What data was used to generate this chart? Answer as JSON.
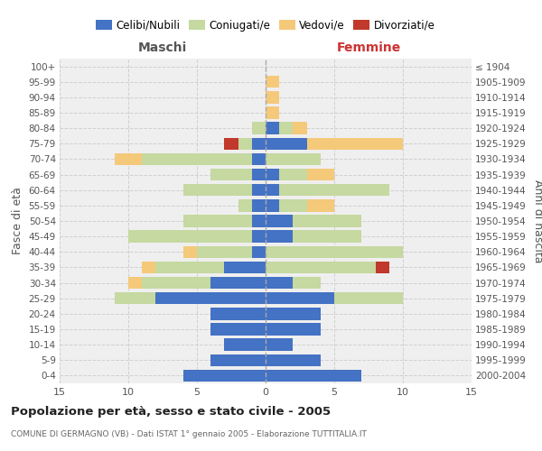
{
  "age_groups": [
    "0-4",
    "5-9",
    "10-14",
    "15-19",
    "20-24",
    "25-29",
    "30-34",
    "35-39",
    "40-44",
    "45-49",
    "50-54",
    "55-59",
    "60-64",
    "65-69",
    "70-74",
    "75-79",
    "80-84",
    "85-89",
    "90-94",
    "95-99",
    "100+"
  ],
  "birth_years": [
    "2000-2004",
    "1995-1999",
    "1990-1994",
    "1985-1989",
    "1980-1984",
    "1975-1979",
    "1970-1974",
    "1965-1969",
    "1960-1964",
    "1955-1959",
    "1950-1954",
    "1945-1949",
    "1940-1944",
    "1935-1939",
    "1930-1934",
    "1925-1929",
    "1920-1924",
    "1915-1919",
    "1910-1914",
    "1905-1909",
    "≤ 1904"
  ],
  "male_celibi": [
    6,
    4,
    3,
    4,
    4,
    8,
    4,
    3,
    1,
    1,
    1,
    1,
    1,
    1,
    1,
    1,
    0,
    0,
    0,
    0,
    0
  ],
  "male_coniugati": [
    0,
    0,
    0,
    0,
    0,
    3,
    5,
    5,
    4,
    9,
    5,
    1,
    5,
    3,
    8,
    1,
    1,
    0,
    0,
    0,
    0
  ],
  "male_vedovi": [
    0,
    0,
    0,
    0,
    0,
    0,
    1,
    1,
    1,
    0,
    0,
    0,
    0,
    0,
    2,
    0,
    0,
    0,
    0,
    0,
    0
  ],
  "male_divorziati": [
    0,
    0,
    0,
    0,
    0,
    0,
    0,
    0,
    0,
    0,
    0,
    0,
    0,
    0,
    0,
    1,
    0,
    0,
    0,
    0,
    0
  ],
  "female_celibi": [
    7,
    4,
    2,
    4,
    4,
    5,
    2,
    0,
    0,
    2,
    2,
    1,
    1,
    1,
    0,
    3,
    1,
    0,
    0,
    0,
    0
  ],
  "female_coniugati": [
    0,
    0,
    0,
    0,
    0,
    5,
    2,
    8,
    10,
    5,
    5,
    2,
    8,
    2,
    4,
    0,
    1,
    0,
    0,
    0,
    0
  ],
  "female_vedovi": [
    0,
    0,
    0,
    0,
    0,
    0,
    0,
    0,
    0,
    0,
    0,
    2,
    0,
    2,
    0,
    7,
    1,
    1,
    1,
    1,
    0
  ],
  "female_divorziati": [
    0,
    0,
    0,
    0,
    0,
    0,
    0,
    1,
    0,
    0,
    0,
    0,
    0,
    0,
    0,
    0,
    0,
    0,
    0,
    0,
    0
  ],
  "color_celibi": "#4472C4",
  "color_coniugati": "#C5D9A0",
  "color_vedovi": "#F5C97A",
  "color_divorziati": "#C0392B",
  "xlim": 15,
  "title": "Popolazione per età, sesso e stato civile - 2005",
  "subtitle": "COMUNE DI GERMAGNO (VB) - Dati ISTAT 1° gennaio 2005 - Elaborazione TUTTITALIA.IT",
  "ylabel_left": "Fasce di età",
  "ylabel_right": "Anni di nascita",
  "xlabel_left": "Maschi",
  "xlabel_right": "Femmine",
  "bg_color": "#efefef",
  "grid_color": "#cccccc"
}
